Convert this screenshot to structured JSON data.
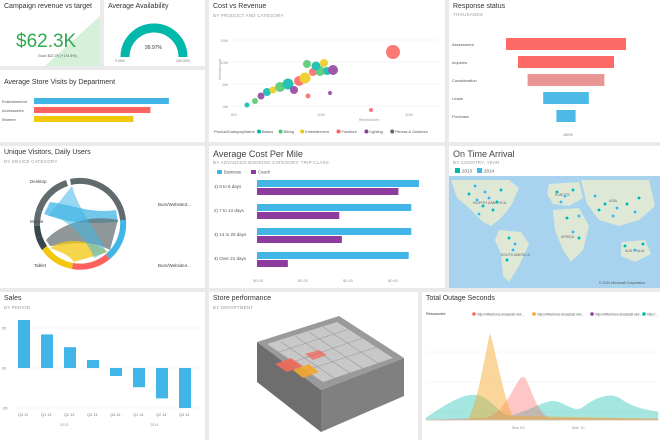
{
  "colors": {
    "teal": "#01b8aa",
    "green": "#4bc86a",
    "red": "#fd625e",
    "yellow": "#f2c80f",
    "blue": "#41b6e6",
    "purple": "#8d3b9c",
    "gray": "#5f6b6d",
    "orange": "#f5a623",
    "bg": "#eaeaea"
  },
  "campaign": {
    "title": "Campaign revenue vs target",
    "value": "$62.3K",
    "goal": "Goal: $22.7K (+174.5%)"
  },
  "availability": {
    "title": "Average Availability",
    "value": "99.97%",
    "min": "0.00%",
    "max": "100.00%",
    "fraction": 0.9997
  },
  "cost_revenue": {
    "title": "Cost vs Revenue",
    "subtitle": "BY PRODUCT AND CATEGORY",
    "legend_label": "ProductCategoryName",
    "legend_items": [
      {
        "name": "Basics",
        "color": "#01b8aa"
      },
      {
        "name": "Biking",
        "color": "#4bc86a"
      },
      {
        "name": "Entertainment",
        "color": "#f2c80f"
      },
      {
        "name": "Furniture",
        "color": "#fd625e"
      },
      {
        "name": "Lighting",
        "color": "#8d3b9c"
      },
      {
        "name": "Fitness & Outdoors",
        "color": "#5f6b6d"
      }
    ],
    "y_ticks": [
      "15M",
      "10M",
      "5M",
      "0M"
    ],
    "x_ticks": [
      "0M",
      "10M",
      "20M"
    ],
    "ylabel": "SalesAmount",
    "xlabel": "RevenueAmt"
  },
  "response": {
    "title": "Response status",
    "subtitle": "THOUSANDS",
    "stages": [
      {
        "label": "Assessment",
        "fraction": 1.0
      },
      {
        "label": "Inquiries",
        "fraction": 0.8
      },
      {
        "label": "Consideration",
        "fraction": 0.64
      },
      {
        "label": "Leads",
        "fraction": 0.38
      },
      {
        "label": "Purchase",
        "fraction": 0.16
      }
    ],
    "bottom_label": "100%"
  },
  "store_visits": {
    "title": "Average Store Visits by Department",
    "rows": [
      {
        "label": "Entertainment",
        "value": 0.95,
        "color": "#41b6e6"
      },
      {
        "label": "Accessories",
        "value": 0.82,
        "color": "#fd625e"
      },
      {
        "label": "Women",
        "value": 0.7,
        "color": "#f2c80f"
      }
    ]
  },
  "visitors": {
    "title": "Unique Visitors, Daily Users",
    "subtitle": "BY DEVICE CATEGORY",
    "labels": [
      "Desktop",
      "Mobile",
      "Tablet",
      "Bum/Website3...",
      "Bum/Website4..."
    ]
  },
  "cost_per_mile": {
    "title": "Average Cost Per Mile",
    "subtitle": "BY ADVANCED BOOKING CATEGORY, TRIP CLASS",
    "legend": [
      "Business",
      "Coach"
    ],
    "categories": [
      "1) 0 to 6 days",
      "2) 7 to 13 days",
      "3) 14 to 20 days",
      "4) Over 21 days"
    ],
    "series": [
      {
        "name": "Business",
        "values": [
          0.63,
          0.6,
          0.6,
          0.59
        ]
      },
      {
        "name": "Coach",
        "values": [
          0.55,
          0.32,
          0.33,
          0.12
        ]
      }
    ],
    "x_ticks": [
      "$0.00",
      "$0.20",
      "$0.40",
      "$0.60"
    ],
    "xlim": [
      0,
      0.7
    ]
  },
  "on_time": {
    "title": "On Time Arrival",
    "subtitle": "BY COUNTRY, YEAR",
    "legend": [
      "2013",
      "2014"
    ],
    "labels": [
      "NORTH AMERICA",
      "SOUTH AMERICA",
      "EUROPE",
      "AFRICA",
      "ASIA",
      "AUSTRALIA"
    ],
    "attribution": "© 2014 Microsoft Corporation"
  },
  "sales": {
    "title": "Sales",
    "subtitle": "BY PERIOD",
    "y_ticks": [
      "$5",
      "$0",
      "-$5"
    ],
    "categories": [
      "Q4 12",
      "Q1 13",
      "Q2 13",
      "Q3 13",
      "Q4 13",
      "Q1 14",
      "Q2 14",
      "Q3 14"
    ],
    "values": [
      6.0,
      4.2,
      2.6,
      1.0,
      -1.0,
      -2.4,
      -3.8,
      -5.0
    ],
    "x_axis_labels": [
      "2013",
      "2014"
    ]
  },
  "store_perf": {
    "title": "Store performance",
    "subtitle": "BY DEPARTMENT"
  },
  "outage": {
    "title": "Total Outage Seconds",
    "legend_label": "ResourceId",
    "legend_items": [
      "http://officeforce.dnsassist.net/...",
      "http://officeforce.dnsassist.net/...",
      "http://officeforce.dnsassist.net/...",
      "http://..."
    ],
    "x_labels": [
      "Mar 03",
      "Mar 10"
    ]
  }
}
